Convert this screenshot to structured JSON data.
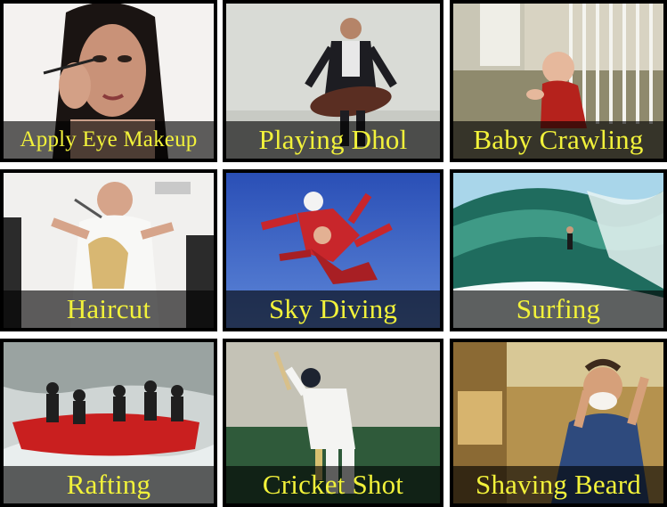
{
  "tiles": [
    {
      "label": "Apply Eye Makeup",
      "scene": "woman-applying-eye-makeup"
    },
    {
      "label": "Playing Dhol",
      "scene": "man-playing-dhol-drum"
    },
    {
      "label": "Baby Crawling",
      "scene": "baby-crawling-near-stairs"
    },
    {
      "label": "Haircut",
      "scene": "man-cutting-hair"
    },
    {
      "label": "Sky Diving",
      "scene": "tandem-skydivers"
    },
    {
      "label": "Surfing",
      "scene": "surfer-in-wave-barrel"
    },
    {
      "label": "Rafting",
      "scene": "team-whitewater-rafting"
    },
    {
      "label": "Cricket Shot",
      "scene": "batsman-playing-shot"
    },
    {
      "label": "Shaving Beard",
      "scene": "man-shaving-with-foam"
    }
  ]
}
